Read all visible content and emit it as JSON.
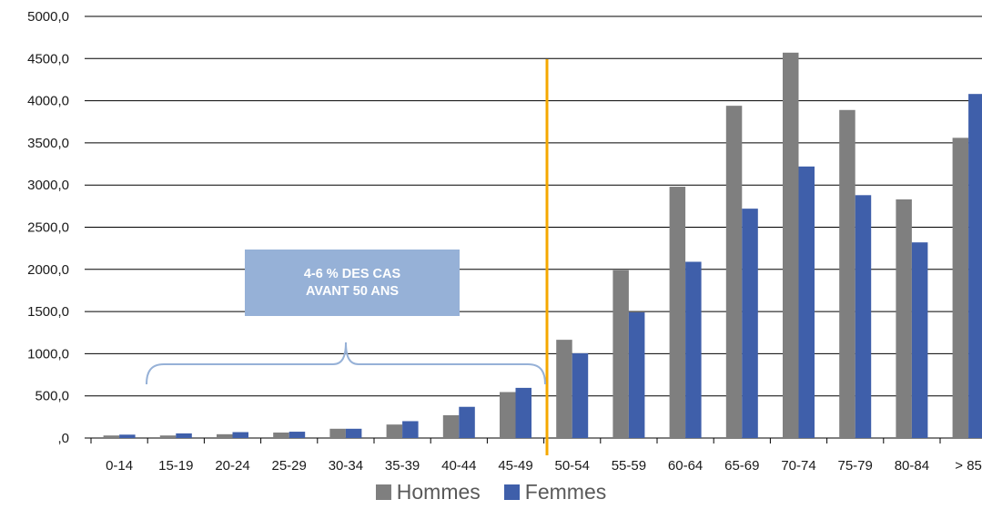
{
  "colors": {
    "hommes": "#7f7f7f",
    "femmes": "#3f5faa",
    "axis": "#000000",
    "grid": "#000000",
    "divider": "#f5a800",
    "callout_bg": "#96b1d7",
    "brace": "#96b1d7"
  },
  "callout": {
    "line1": "4-6 % DES CAS",
    "line2": "AVANT 50 ANS"
  },
  "legend": [
    {
      "name": "Hommes",
      "color": "#7f7f7f"
    },
    {
      "name": "Femmes",
      "color": "#3f5faa"
    }
  ],
  "chart_data": {
    "type": "bar",
    "title": "",
    "xlabel": "",
    "ylabel": "",
    "categories": [
      "0-14",
      "15-19",
      "20-24",
      "25-29",
      "30-34",
      "35-39",
      "40-44",
      "45-49",
      "50-54",
      "55-59",
      "60-64",
      "65-69",
      "70-74",
      "75-79",
      "80-84",
      "> 85"
    ],
    "series": [
      {
        "name": "Hommes",
        "values": [
          30,
          30,
          45,
          65,
          110,
          160,
          270,
          545,
          1165,
          1990,
          2980,
          3940,
          4570,
          3890,
          2830,
          3560
        ]
      },
      {
        "name": "Femmes",
        "values": [
          40,
          55,
          70,
          75,
          110,
          200,
          370,
          595,
          1005,
          1490,
          2090,
          2720,
          3220,
          2880,
          2320,
          4080
        ]
      }
    ],
    "ylim": [
      0,
      5000
    ],
    "yticks": [
      ",0",
      "500,0",
      "1000,0",
      "1500,0",
      "2000,0",
      "2500,0",
      "3000,0",
      "3500,0",
      "4000,0",
      "4500,0",
      "5000,0"
    ],
    "grid": true,
    "legend_position": "bottom",
    "annotations": [
      "4-6 % DES CAS AVANT 50 ANS"
    ]
  }
}
